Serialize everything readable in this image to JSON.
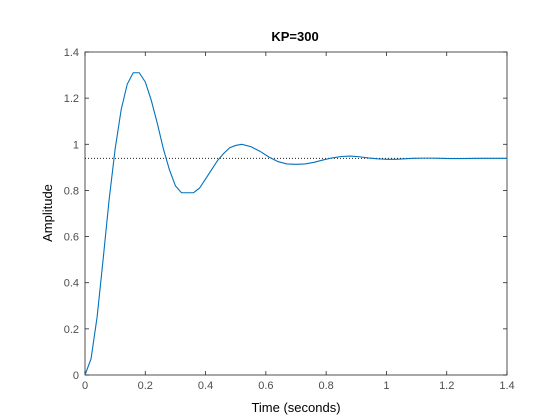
{
  "chart_data": {
    "type": "line",
    "title": "KP=300",
    "xlabel": "Time (seconds)",
    "ylabel": "Amplitude",
    "xlim": [
      0,
      1.4
    ],
    "ylim": [
      0,
      1.4
    ],
    "xticks": [
      "0",
      "0.2",
      "0.4",
      "0.6",
      "0.8",
      "1",
      "1.2",
      "1.4"
    ],
    "yticks": [
      "0",
      "0.2",
      "0.4",
      "0.6",
      "0.8",
      "1",
      "1.2",
      "1.4"
    ],
    "grid": false,
    "legend": "none",
    "series": [
      {
        "color": "#0072bd",
        "x": [
          0.0,
          0.02,
          0.04,
          0.06,
          0.08,
          0.1,
          0.12,
          0.14,
          0.16,
          0.18,
          0.2,
          0.22,
          0.24,
          0.26,
          0.28,
          0.3,
          0.32,
          0.34,
          0.36,
          0.38,
          0.4,
          0.42,
          0.44,
          0.46,
          0.48,
          0.5,
          0.52,
          0.55,
          0.58,
          0.61,
          0.64,
          0.67,
          0.7,
          0.73,
          0.76,
          0.79,
          0.82,
          0.85,
          0.88,
          0.91,
          0.94,
          0.97,
          1.0,
          1.03,
          1.06,
          1.09,
          1.12,
          1.15,
          1.18,
          1.21,
          1.25,
          1.3,
          1.35,
          1.4
        ],
        "y": [
          0.0,
          0.07,
          0.25,
          0.5,
          0.76,
          0.98,
          1.15,
          1.26,
          1.31,
          1.31,
          1.27,
          1.19,
          1.09,
          0.98,
          0.89,
          0.82,
          0.79,
          0.79,
          0.79,
          0.81,
          0.85,
          0.89,
          0.93,
          0.96,
          0.985,
          0.995,
          1.0,
          0.99,
          0.97,
          0.945,
          0.925,
          0.915,
          0.913,
          0.915,
          0.922,
          0.932,
          0.941,
          0.947,
          0.949,
          0.946,
          0.941,
          0.937,
          0.935,
          0.935,
          0.937,
          0.939,
          0.94,
          0.94,
          0.939,
          0.938,
          0.938,
          0.939,
          0.939,
          0.939
        ]
      }
    ],
    "reference_line": {
      "y": 0.939,
      "style": "dotted",
      "color": "#000000"
    }
  }
}
